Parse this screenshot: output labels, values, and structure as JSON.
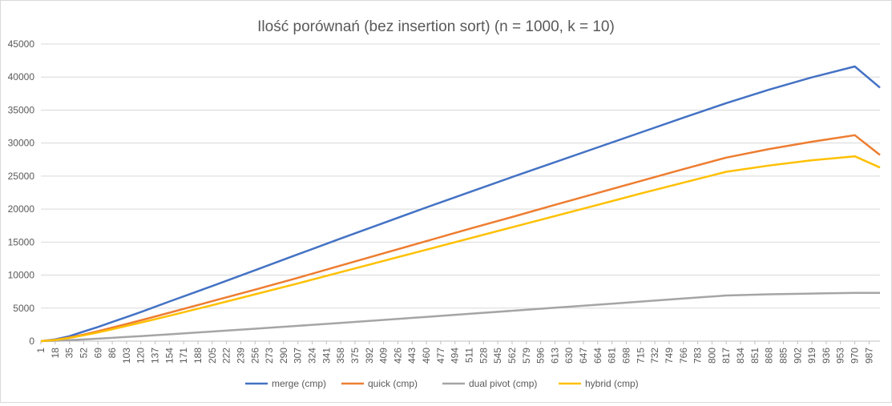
{
  "chart_data": {
    "type": "line",
    "title": "Ilość porównań (bez insertion sort) (n = 1000, k = 10)",
    "xlabel": "",
    "ylabel": "",
    "ylim": [
      0,
      45000
    ],
    "yticks": [
      "0",
      "5000",
      "10000",
      "15000",
      "20000",
      "25000",
      "30000",
      "35000",
      "40000",
      "45000"
    ],
    "xlim": [
      1,
      1000
    ],
    "xticks": [
      "1",
      "18",
      "35",
      "52",
      "69",
      "86",
      "103",
      "120",
      "137",
      "154",
      "171",
      "188",
      "205",
      "222",
      "239",
      "256",
      "273",
      "290",
      "307",
      "324",
      "341",
      "358",
      "375",
      "392",
      "409",
      "426",
      "443",
      "460",
      "477",
      "494",
      "511",
      "528",
      "545",
      "562",
      "579",
      "596",
      "613",
      "630",
      "647",
      "664",
      "681",
      "698",
      "715",
      "732",
      "749",
      "766",
      "783",
      "800",
      "817",
      "834",
      "851",
      "868",
      "885",
      "902",
      "919",
      "936",
      "953",
      "970",
      "987"
    ],
    "grid": "horizontal",
    "legend_position": "bottom",
    "series": [
      {
        "name": "merge (cmp)",
        "color": "#4472C4",
        "x": [
          1,
          18,
          35,
          52,
          69,
          86,
          103,
          120,
          154,
          205,
          256,
          307,
          358,
          409,
          460,
          511,
          562,
          613,
          664,
          715,
          766,
          817,
          868,
          919,
          970,
          1000
        ],
        "y": [
          0,
          250,
          750,
          1450,
          2150,
          2900,
          3650,
          4400,
          6000,
          8350,
          10750,
          13150,
          15550,
          17900,
          20250,
          22550,
          24850,
          27100,
          29350,
          31600,
          33850,
          36050,
          38100,
          39950,
          41600,
          38400
        ]
      },
      {
        "name": "quick (cmp)",
        "color": "#ED7D31",
        "x": [
          1,
          18,
          35,
          52,
          69,
          86,
          103,
          120,
          154,
          205,
          256,
          307,
          358,
          409,
          460,
          511,
          562,
          613,
          664,
          715,
          766,
          817,
          868,
          919,
          970,
          1000
        ],
        "y": [
          0,
          200,
          550,
          1000,
          1500,
          2050,
          2600,
          3150,
          4300,
          6050,
          7800,
          9600,
          11450,
          13300,
          15150,
          17000,
          18800,
          20650,
          22450,
          24250,
          26050,
          27800,
          29100,
          30200,
          31200,
          28200
        ]
      },
      {
        "name": "dual pivot (cmp)",
        "color": "#A5A5A5",
        "x": [
          1,
          18,
          35,
          52,
          69,
          86,
          103,
          120,
          154,
          205,
          256,
          307,
          358,
          409,
          460,
          511,
          562,
          613,
          664,
          715,
          766,
          817,
          868,
          919,
          970,
          1000
        ],
        "y": [
          0,
          60,
          150,
          260,
          380,
          500,
          630,
          760,
          1030,
          1450,
          1880,
          2320,
          2770,
          3220,
          3680,
          4140,
          4600,
          5060,
          5520,
          5990,
          6450,
          6910,
          7100,
          7200,
          7300,
          7300
        ]
      },
      {
        "name": "hybrid (cmp)",
        "color": "#FFC000",
        "x": [
          1,
          18,
          35,
          52,
          69,
          86,
          103,
          120,
          154,
          205,
          256,
          307,
          358,
          409,
          460,
          511,
          562,
          613,
          664,
          715,
          766,
          817,
          868,
          919,
          970,
          1000
        ],
        "y": [
          0,
          170,
          480,
          880,
          1320,
          1800,
          2300,
          2800,
          3850,
          5450,
          7100,
          8750,
          10450,
          12150,
          13850,
          15550,
          17250,
          18950,
          20650,
          22350,
          24000,
          25650,
          26600,
          27400,
          28000,
          26300
        ]
      }
    ]
  }
}
